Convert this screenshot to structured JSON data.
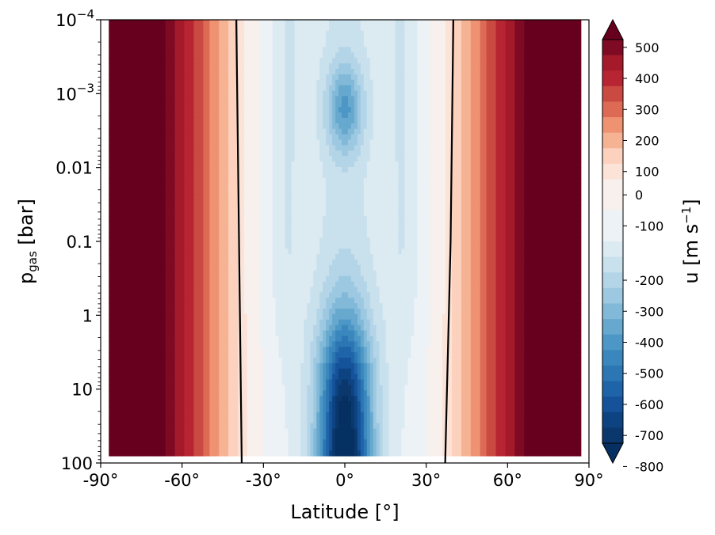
{
  "chart_data": {
    "type": "heatmap",
    "title": "",
    "xlabel": "Latitude [°]",
    "ylabel": {
      "main": "p",
      "sub": "gas",
      "unit": " [bar]"
    },
    "colorbar_label": {
      "main": "u [m s",
      "sup": "−1",
      "end": "]"
    },
    "x_ticks": [
      {
        "value": -90,
        "label": "-90°"
      },
      {
        "value": -60,
        "label": "-60°"
      },
      {
        "value": -30,
        "label": "-30°"
      },
      {
        "value": 0,
        "label": "0°"
      },
      {
        "value": 30,
        "label": "30°"
      },
      {
        "value": 60,
        "label": "60°"
      },
      {
        "value": 90,
        "label": "90°"
      }
    ],
    "y_ticks": [
      {
        "value": 0.0001,
        "base": "10",
        "sup": "−4"
      },
      {
        "value": 0.001,
        "base": "10",
        "sup": "−3"
      },
      {
        "value": 0.01,
        "label": "0.01"
      },
      {
        "value": 0.1,
        "label": "0.1"
      },
      {
        "value": 1,
        "label": "1"
      },
      {
        "value": 10,
        "label": "10"
      },
      {
        "value": 100,
        "label": "100"
      }
    ],
    "xlim": [
      -90,
      90
    ],
    "ylim": [
      100,
      0.0001
    ],
    "y_scale": "log",
    "y_inverted": true,
    "colorbar_ticks": [
      500,
      400,
      300,
      200,
      100,
      0,
      -100,
      -200,
      -300,
      -400,
      -500,
      -600,
      -700,
      -800
    ],
    "color_levels": [
      {
        "min": 550,
        "max": null,
        "color": "#67001f"
      },
      {
        "min": 500,
        "max": 550,
        "color": "#7e0b23"
      },
      {
        "min": 450,
        "max": 500,
        "color": "#a51a2b"
      },
      {
        "min": 400,
        "max": 450,
        "color": "#b82532"
      },
      {
        "min": 350,
        "max": 400,
        "color": "#ca4941"
      },
      {
        "min": 300,
        "max": 350,
        "color": "#dc6a55"
      },
      {
        "min": 250,
        "max": 300,
        "color": "#ee9272"
      },
      {
        "min": 200,
        "max": 250,
        "color": "#f6b394"
      },
      {
        "min": 150,
        "max": 200,
        "color": "#fcd1bd"
      },
      {
        "min": 100,
        "max": 150,
        "color": "#fbe3d8"
      },
      {
        "min": 0,
        "max": 100,
        "color": "#f7f0ed"
      },
      {
        "min": -100,
        "max": 0,
        "color": "#ecf2f6"
      },
      {
        "min": -150,
        "max": -100,
        "color": "#dceaf2"
      },
      {
        "min": -200,
        "max": -150,
        "color": "#c9e0ed"
      },
      {
        "min": -250,
        "max": -200,
        "color": "#b4d5e7"
      },
      {
        "min": -300,
        "max": -250,
        "color": "#9cc9e1"
      },
      {
        "min": -350,
        "max": -300,
        "color": "#82b9d8"
      },
      {
        "min": -400,
        "max": -350,
        "color": "#67a8ce"
      },
      {
        "min": -450,
        "max": -400,
        "color": "#4c97c5"
      },
      {
        "min": -500,
        "max": -450,
        "color": "#3a87bd"
      },
      {
        "min": -550,
        "max": -500,
        "color": "#2b76b3"
      },
      {
        "min": -600,
        "max": -550,
        "color": "#1f64a8"
      },
      {
        "min": -650,
        "max": -600,
        "color": "#15529a"
      },
      {
        "min": -700,
        "max": -650,
        "color": "#0d4380"
      },
      {
        "min": -750,
        "max": -700,
        "color": "#0b386c"
      },
      {
        "min": null,
        "max": -750,
        "color": "#053061"
      }
    ],
    "zero_contour": {
      "color": "#000000",
      "west": [
        {
          "lat": -40,
          "p": 0.0001
        },
        {
          "lat": -39,
          "p": 0.1
        },
        {
          "lat": -38,
          "p": 100
        }
      ],
      "east": [
        {
          "lat": 40,
          "p": 0.0001
        },
        {
          "lat": 39,
          "p": 0.1
        },
        {
          "lat": 37,
          "p": 100
        }
      ]
    },
    "field_model": {
      "x_range_data": [
        -87,
        87
      ],
      "wind_max": 560,
      "jet_min": -850
    }
  }
}
